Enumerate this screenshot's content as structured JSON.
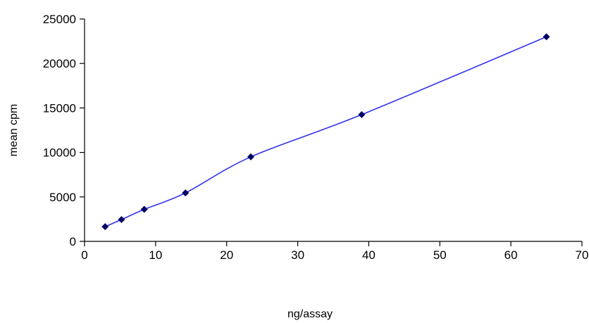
{
  "chart_data": {
    "type": "line",
    "title": "",
    "xlabel": "ng/assay",
    "ylabel": "mean cpm",
    "xlim": [
      0,
      70
    ],
    "ylim": [
      0,
      25000
    ],
    "x_ticks": [
      0,
      10,
      20,
      30,
      40,
      50,
      60,
      70
    ],
    "y_ticks": [
      0,
      5000,
      10000,
      15000,
      20000,
      25000
    ],
    "grid": false,
    "legend": "none",
    "smooth": true,
    "line_color": "#3333ee",
    "marker_color": "#000066",
    "marker": "diamond",
    "series": [
      {
        "x": [
          2.9,
          5.2,
          8.4,
          14.2,
          23.4,
          39.0,
          65.0
        ],
        "y": [
          1650,
          2450,
          3600,
          5450,
          9500,
          14250,
          23000
        ]
      }
    ]
  }
}
